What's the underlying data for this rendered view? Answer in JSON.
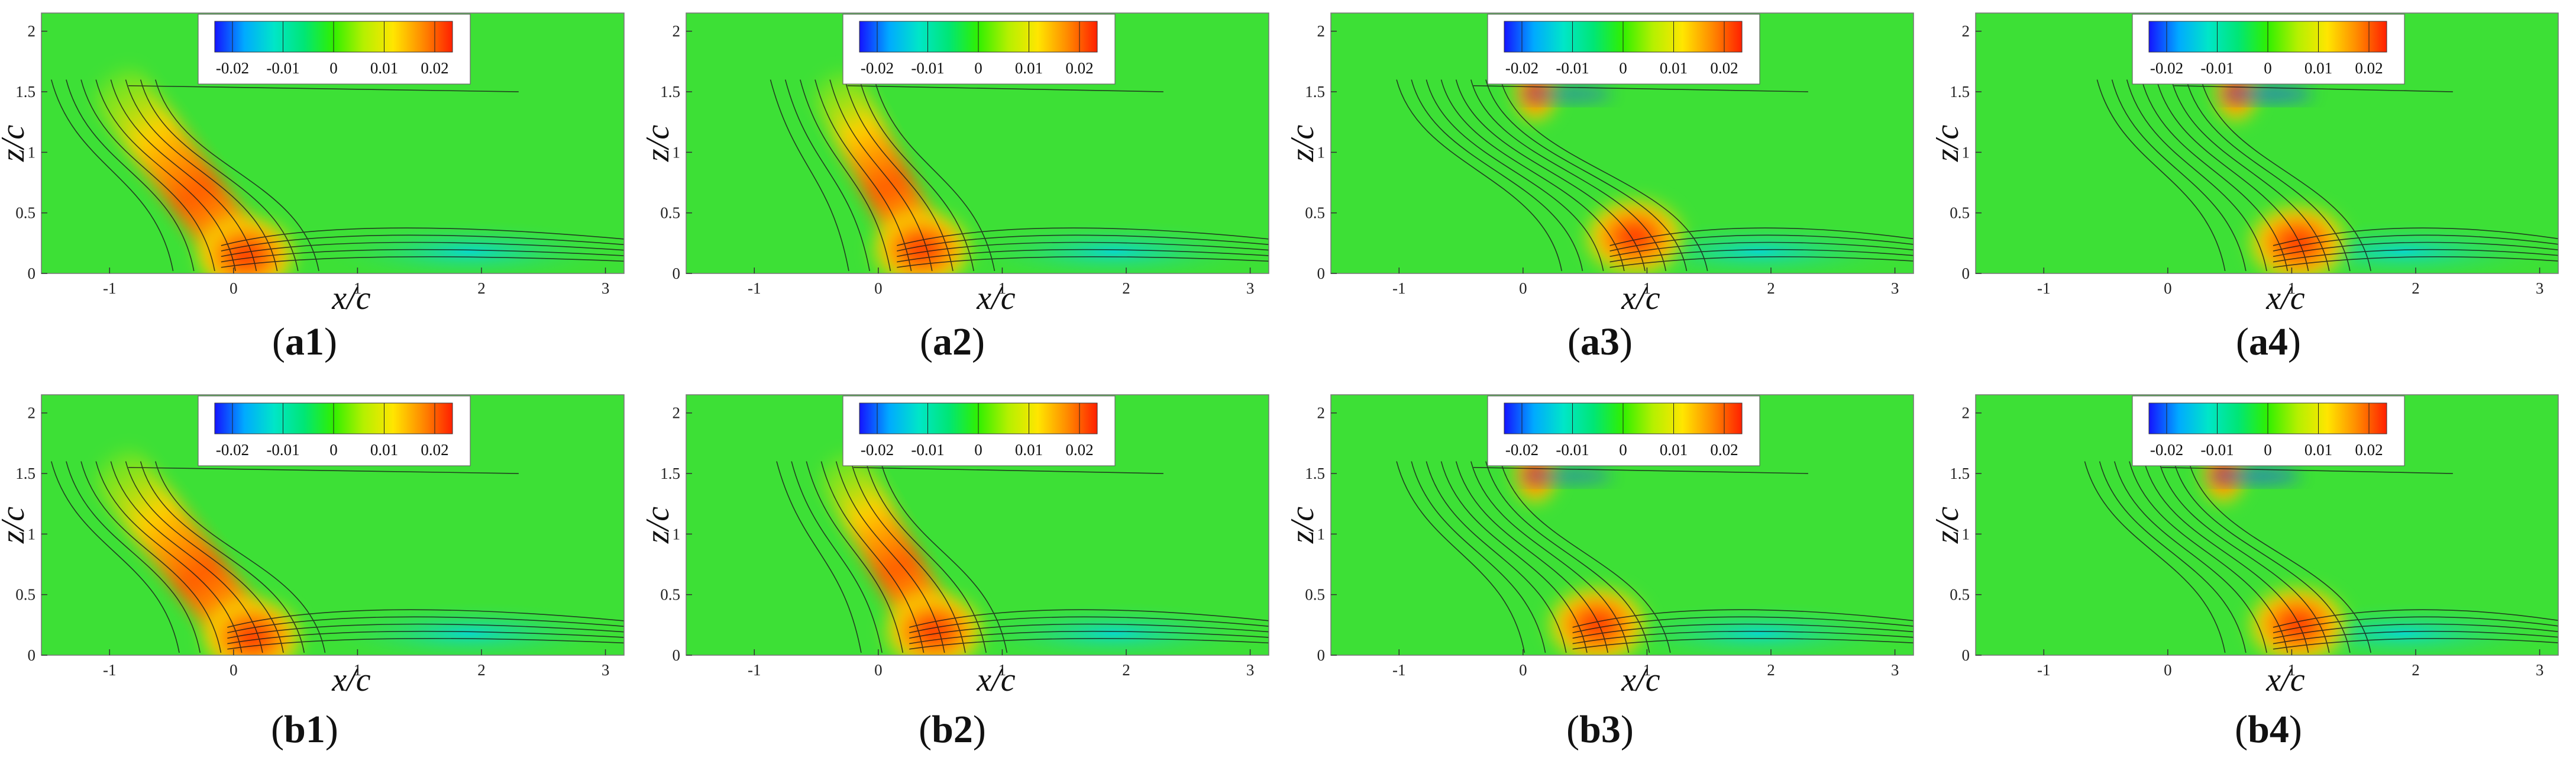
{
  "figure": {
    "axis_labels": {
      "x": "x/c",
      "z": "z/c"
    },
    "x_ticks": [
      "-1",
      "0",
      "1",
      "2",
      "3"
    ],
    "z_ticks": [
      "0",
      "0.5",
      "1",
      "1.5",
      "2"
    ],
    "colorbar": {
      "tick_labels": [
        "-0.02",
        "-0.01",
        "0",
        "0.01",
        "0.02"
      ],
      "min": -0.02,
      "max": 0.02,
      "colors": [
        "#1414ff",
        "#00aaff",
        "#00e6c8",
        "#00e676",
        "#30f000",
        "#b4f000",
        "#ffe600",
        "#ff8a00",
        "#ff2000"
      ]
    },
    "background_color": "#3de036",
    "panels": [
      {
        "id": "a1",
        "caption_prefix": "(",
        "caption_letter": "a1",
        "caption_suffix": ")"
      },
      {
        "id": "a2",
        "caption_prefix": "(",
        "caption_letter": "a2",
        "caption_suffix": ")"
      },
      {
        "id": "a3",
        "caption_prefix": "(",
        "caption_letter": "a3",
        "caption_suffix": ")"
      },
      {
        "id": "a4",
        "caption_prefix": "(",
        "caption_letter": "a4",
        "caption_suffix": ")"
      },
      {
        "id": "b1",
        "caption_prefix": "(",
        "caption_letter": "b1",
        "caption_suffix": ")"
      },
      {
        "id": "b2",
        "caption_prefix": "(",
        "caption_letter": "b2",
        "caption_suffix": ")"
      },
      {
        "id": "b3",
        "caption_prefix": "(",
        "caption_letter": "b3",
        "caption_suffix": ")"
      },
      {
        "id": "b4",
        "caption_prefix": "(",
        "caption_letter": "b4",
        "caption_suffix": ")"
      }
    ]
  }
}
